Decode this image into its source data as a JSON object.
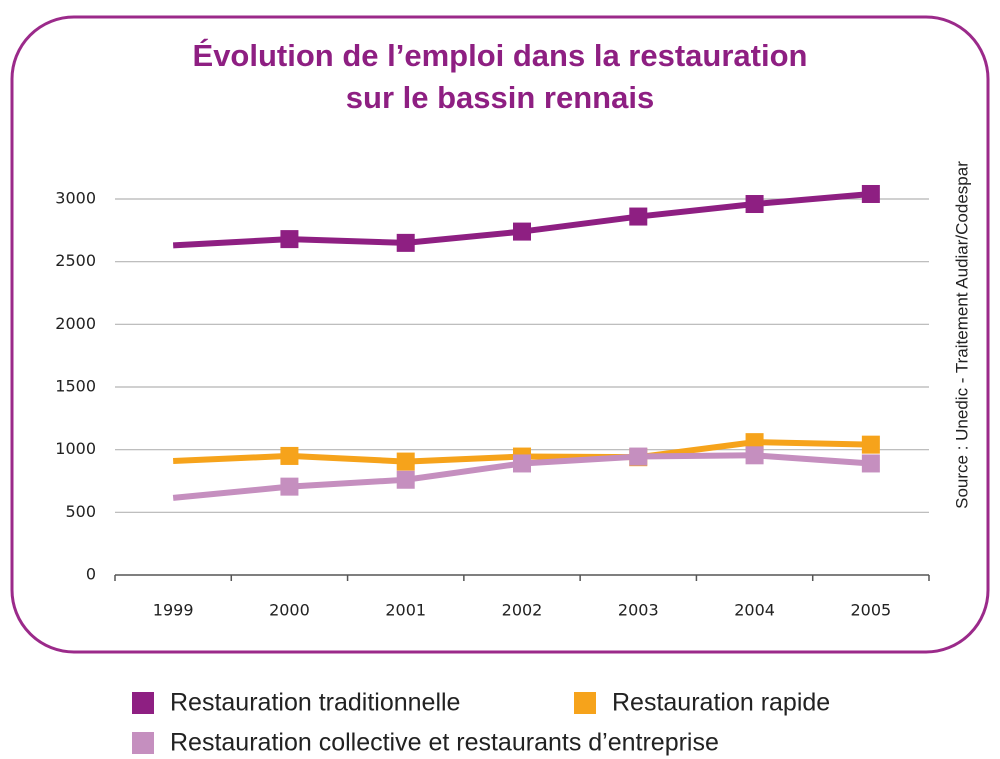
{
  "chart_data": {
    "type": "line",
    "title": [
      "Évolution de l’emploi dans la restauration",
      "sur le bassin rennais"
    ],
    "source": "Source : Unedic - Traitement Audiar/Codespar",
    "categories": [
      "1999",
      "2000",
      "2001",
      "2002",
      "2003",
      "2004",
      "2005"
    ],
    "series": [
      {
        "name": "Restauration traditionnelle",
        "color": "#8e1f82",
        "values": [
          2630,
          2680,
          2650,
          2740,
          2860,
          2960,
          3040
        ]
      },
      {
        "name": "Restauration rapide",
        "color": "#f6a31b",
        "values": [
          910,
          950,
          905,
          945,
          940,
          1060,
          1040
        ]
      },
      {
        "name": "Restauration collective et restaurants d’entreprise",
        "color": "#c58fbf",
        "values": [
          615,
          705,
          760,
          890,
          945,
          955,
          890
        ]
      }
    ],
    "ylim": [
      0,
      3000
    ],
    "yticks": [
      0,
      500,
      1000,
      1500,
      2000,
      2500,
      3000
    ],
    "grid": true
  }
}
